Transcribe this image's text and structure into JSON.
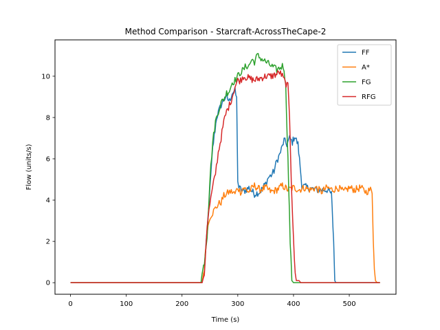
{
  "chart_data": {
    "type": "line",
    "title": "Method Comparison - Starcraft-AcrossTheCape-2",
    "xlabel": "Time (s)",
    "ylabel": "Flow (units/s)",
    "xlim": [
      -27.8,
      583.8
    ],
    "ylim": [
      -0.56,
      11.76
    ],
    "xticks": [
      0,
      100,
      200,
      300,
      400,
      500
    ],
    "yticks": [
      0,
      2,
      4,
      6,
      8,
      10
    ],
    "grid": false,
    "legend_position": "top-right",
    "series": [
      {
        "name": "FF",
        "color": "#1f77b4",
        "points": [
          [
            0,
            0
          ],
          [
            236,
            0
          ],
          [
            240,
            0.6
          ],
          [
            245,
            2.5
          ],
          [
            250,
            4.5
          ],
          [
            255,
            6.5
          ],
          [
            262,
            8.0
          ],
          [
            270,
            8.6
          ],
          [
            278,
            9.0
          ],
          [
            285,
            8.8
          ],
          [
            290,
            9.2
          ],
          [
            295,
            9.3
          ],
          [
            298,
            8.9
          ],
          [
            300,
            5.0
          ],
          [
            302,
            4.6
          ],
          [
            310,
            4.4
          ],
          [
            320,
            4.6
          ],
          [
            330,
            4.3
          ],
          [
            340,
            4.4
          ],
          [
            350,
            4.8
          ],
          [
            355,
            5.1
          ],
          [
            360,
            5.2
          ],
          [
            365,
            5.4
          ],
          [
            370,
            5.9
          ],
          [
            375,
            6.2
          ],
          [
            380,
            6.6
          ],
          [
            383,
            6.9
          ],
          [
            388,
            6.7
          ],
          [
            393,
            7.0
          ],
          [
            398,
            6.8
          ],
          [
            402,
            7.1
          ],
          [
            408,
            6.7
          ],
          [
            412,
            5.6
          ],
          [
            415,
            4.7
          ],
          [
            425,
            4.6
          ],
          [
            440,
            4.5
          ],
          [
            460,
            4.5
          ],
          [
            468,
            4.3
          ],
          [
            472,
            2.0
          ],
          [
            474,
            0.1
          ],
          [
            476,
            0
          ],
          [
            555,
            0
          ]
        ]
      },
      {
        "name": "A*",
        "color": "#ff7f0e",
        "points": [
          [
            0,
            0
          ],
          [
            236,
            0
          ],
          [
            240,
            0.7
          ],
          [
            245,
            2.5
          ],
          [
            250,
            3.2
          ],
          [
            255,
            3.4
          ],
          [
            260,
            3.6
          ],
          [
            265,
            3.8
          ],
          [
            270,
            3.9
          ],
          [
            275,
            4.2
          ],
          [
            280,
            4.3
          ],
          [
            285,
            4.4
          ],
          [
            290,
            4.4
          ],
          [
            295,
            4.3
          ],
          [
            300,
            4.6
          ],
          [
            305,
            4.4
          ],
          [
            310,
            4.6
          ],
          [
            320,
            4.4
          ],
          [
            330,
            4.7
          ],
          [
            340,
            4.5
          ],
          [
            350,
            4.6
          ],
          [
            360,
            4.4
          ],
          [
            370,
            4.5
          ],
          [
            380,
            4.7
          ],
          [
            390,
            4.5
          ],
          [
            400,
            4.6
          ],
          [
            410,
            4.5
          ],
          [
            420,
            4.6
          ],
          [
            430,
            4.5
          ],
          [
            440,
            4.6
          ],
          [
            450,
            4.4
          ],
          [
            460,
            4.6
          ],
          [
            470,
            4.5
          ],
          [
            480,
            4.6
          ],
          [
            490,
            4.4
          ],
          [
            500,
            4.6
          ],
          [
            510,
            4.5
          ],
          [
            520,
            4.6
          ],
          [
            530,
            4.4
          ],
          [
            538,
            4.5
          ],
          [
            541,
            4.4
          ],
          [
            543,
            2.2
          ],
          [
            545,
            0.8
          ],
          [
            547,
            0.1
          ],
          [
            550,
            0
          ],
          [
            555,
            0
          ]
        ]
      },
      {
        "name": "FG",
        "color": "#2ca02c",
        "points": [
          [
            0,
            0
          ],
          [
            234,
            0
          ],
          [
            236,
            0.4
          ],
          [
            240,
            1.0
          ],
          [
            245,
            2.3
          ],
          [
            250,
            5.0
          ],
          [
            255,
            6.8
          ],
          [
            260,
            7.8
          ],
          [
            265,
            8.3
          ],
          [
            270,
            8.7
          ],
          [
            275,
            8.9
          ],
          [
            280,
            9.2
          ],
          [
            285,
            9.3
          ],
          [
            290,
            9.7
          ],
          [
            295,
            9.8
          ],
          [
            300,
            10.0
          ],
          [
            305,
            10.2
          ],
          [
            310,
            10.3
          ],
          [
            315,
            10.5
          ],
          [
            320,
            10.5
          ],
          [
            325,
            10.8
          ],
          [
            330,
            10.7
          ],
          [
            335,
            11.0
          ],
          [
            340,
            10.9
          ],
          [
            345,
            10.8
          ],
          [
            350,
            10.7
          ],
          [
            355,
            10.6
          ],
          [
            360,
            10.5
          ],
          [
            365,
            10.4
          ],
          [
            370,
            10.3
          ],
          [
            375,
            10.4
          ],
          [
            380,
            10.5
          ],
          [
            383,
            10.4
          ],
          [
            386,
            9.5
          ],
          [
            390,
            6.0
          ],
          [
            394,
            2.0
          ],
          [
            397,
            0.1
          ],
          [
            400,
            0
          ],
          [
            555,
            0
          ]
        ]
      },
      {
        "name": "RFG",
        "color": "#d62728",
        "points": [
          [
            0,
            0
          ],
          [
            236,
            0
          ],
          [
            240,
            0.4
          ],
          [
            245,
            2.8
          ],
          [
            250,
            3.8
          ],
          [
            255,
            4.6
          ],
          [
            260,
            5.3
          ],
          [
            265,
            6.3
          ],
          [
            270,
            7.0
          ],
          [
            275,
            7.8
          ],
          [
            280,
            8.3
          ],
          [
            285,
            8.6
          ],
          [
            290,
            9.0
          ],
          [
            295,
            9.5
          ],
          [
            300,
            9.8
          ],
          [
            305,
            9.8
          ],
          [
            310,
            10.0
          ],
          [
            320,
            9.9
          ],
          [
            330,
            9.8
          ],
          [
            340,
            9.9
          ],
          [
            350,
            10.0
          ],
          [
            360,
            10.0
          ],
          [
            370,
            10.1
          ],
          [
            375,
            10.2
          ],
          [
            380,
            10.0
          ],
          [
            385,
            9.7
          ],
          [
            390,
            9.5
          ],
          [
            393,
            8.0
          ],
          [
            396,
            5.0
          ],
          [
            400,
            2.0
          ],
          [
            403,
            0.4
          ],
          [
            405,
            0.1
          ],
          [
            410,
            0.1
          ],
          [
            413,
            0
          ],
          [
            555,
            0
          ]
        ]
      }
    ]
  }
}
